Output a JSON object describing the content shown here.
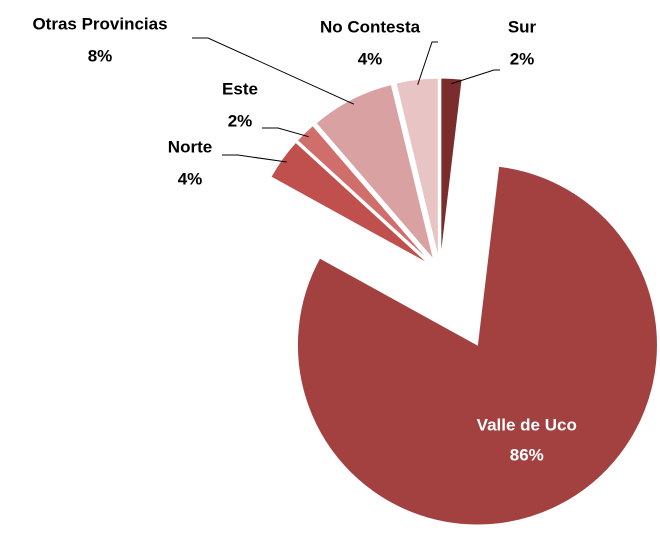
{
  "chart_data": {
    "type": "pie",
    "labels": [
      "Sur",
      "Valle de Uco",
      "Norte",
      "Este",
      "Otras Provincias",
      "No Contesta"
    ],
    "values": [
      2,
      86,
      4,
      2,
      8,
      4
    ],
    "value_labels": [
      "2%",
      "86%",
      "4%",
      "2%",
      "8%",
      "4%"
    ],
    "colors": [
      "#7b2c2c",
      "#a34040",
      "#c0504d",
      "#cf6e6b",
      "#d9a1a1",
      "#e8c4c4"
    ]
  }
}
